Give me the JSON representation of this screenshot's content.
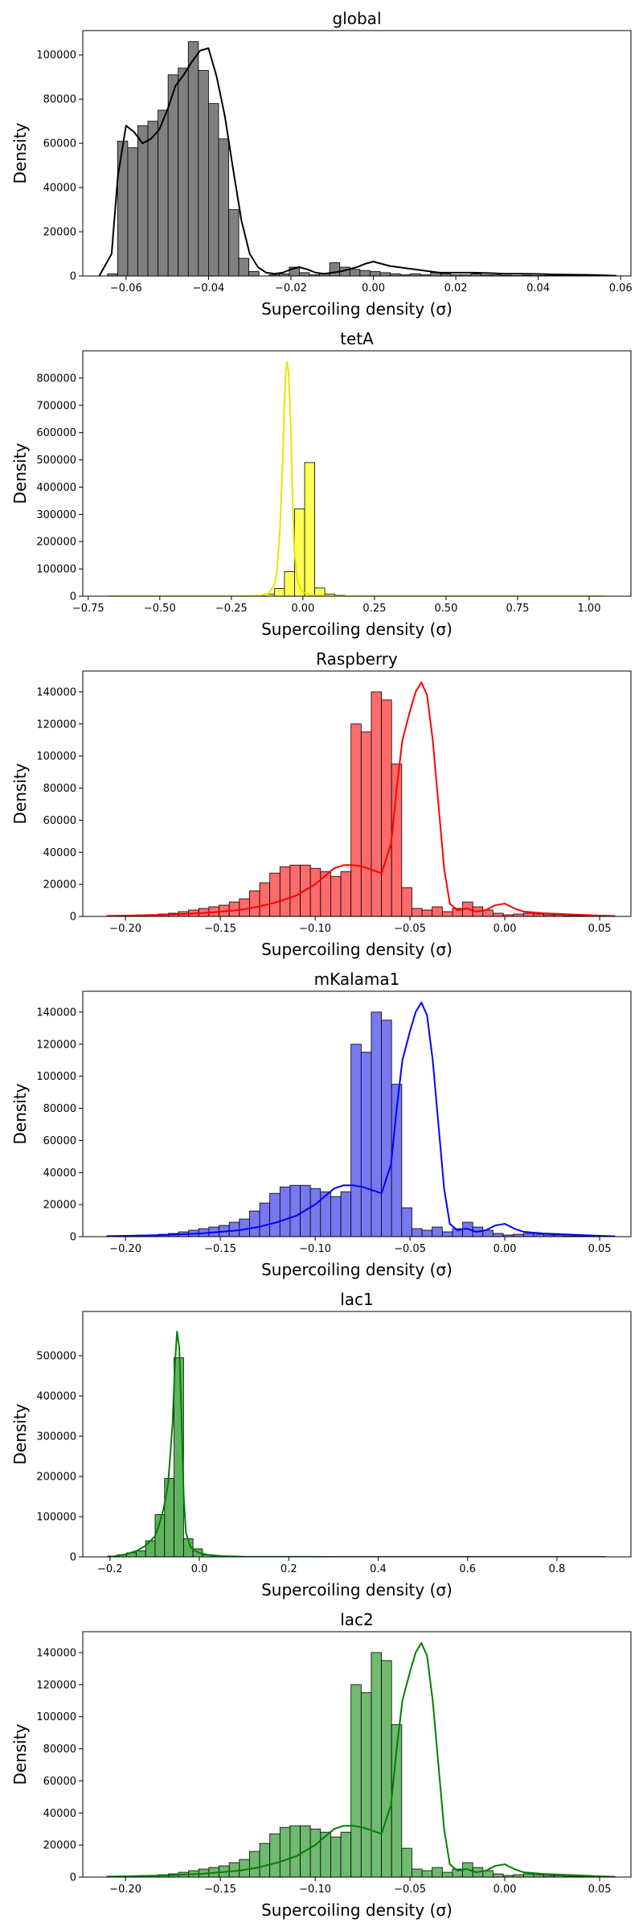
{
  "chart_data": [
    {
      "type": "histogram",
      "title": "global",
      "xlabel": "Supercoiling density (σ)",
      "ylabel": "Density",
      "color": "#808080",
      "line_color": "#000000",
      "xlim": [
        -0.0705,
        0.0625
      ],
      "ylim": [
        0,
        111000
      ],
      "xticks": [
        -0.06,
        -0.04,
        -0.02,
        0.0,
        0.02,
        0.04,
        0.06
      ],
      "xtick_labels": [
        "−0.06",
        "−0.04",
        "−0.02",
        "0.00",
        "0.02",
        "0.04",
        "0.06"
      ],
      "yticks": [
        0,
        20000,
        40000,
        60000,
        80000,
        100000
      ],
      "ytick_labels": [
        "0",
        "20000",
        "40000",
        "60000",
        "80000",
        "100000"
      ],
      "bins": {
        "x0": -0.0645,
        "width": 0.00245,
        "values": [
          1000,
          61000,
          58000,
          68000,
          70000,
          75000,
          91000,
          94000,
          106000,
          93000,
          78000,
          62000,
          30000,
          8000,
          2000,
          0,
          500,
          1000,
          4000,
          1500,
          500,
          1000,
          6000,
          4000,
          3000,
          2500,
          2000,
          1500,
          1000,
          500,
          1000,
          500,
          1500,
          1000,
          500,
          500,
          1000,
          500,
          500,
          300,
          200,
          300,
          200,
          200,
          300,
          200,
          100,
          100,
          100,
          50,
          50,
          50,
          50,
          50
        ]
      },
      "kde": {
        "x": [
          -0.0665,
          -0.0635,
          -0.062,
          -0.06,
          -0.058,
          -0.056,
          -0.054,
          -0.052,
          -0.05,
          -0.048,
          -0.046,
          -0.044,
          -0.042,
          -0.04,
          -0.038,
          -0.036,
          -0.034,
          -0.032,
          -0.03,
          -0.028,
          -0.026,
          -0.024,
          -0.022,
          -0.02,
          -0.018,
          -0.016,
          -0.014,
          -0.012,
          -0.01,
          -0.008,
          -0.006,
          -0.004,
          -0.002,
          0.0,
          0.002,
          0.004,
          0.006,
          0.008,
          0.01,
          0.012,
          0.014,
          0.016,
          0.018,
          0.02,
          0.024,
          0.028,
          0.032,
          0.036,
          0.04,
          0.044,
          0.048,
          0.052,
          0.056,
          0.059
        ],
        "y": [
          0,
          10000,
          45000,
          68000,
          65000,
          60000,
          62000,
          66000,
          75000,
          86000,
          91000,
          97000,
          102000,
          103000,
          90000,
          72000,
          48000,
          25000,
          10000,
          4000,
          1500,
          1000,
          1500,
          3000,
          4000,
          3000,
          1500,
          1000,
          1500,
          2000,
          3000,
          4000,
          5500,
          6500,
          5500,
          4500,
          4000,
          3500,
          3000,
          2500,
          2000,
          1500,
          1500,
          1500,
          1500,
          1300,
          1000,
          1000,
          900,
          700,
          600,
          500,
          300,
          100
        ]
      }
    },
    {
      "type": "histogram",
      "title": "tetA",
      "xlabel": "Supercoiling density (σ)",
      "ylabel": "Density",
      "color": "#ffff55",
      "line_color": "#e6e600",
      "xlim": [
        -0.769,
        1.146
      ],
      "ylim": [
        0,
        900000
      ],
      "xticks": [
        -0.75,
        -0.5,
        -0.25,
        0.0,
        0.25,
        0.5,
        0.75,
        1.0
      ],
      "xtick_labels": [
        "−0.75",
        "−0.50",
        "−0.25",
        "0.00",
        "0.25",
        "0.50",
        "0.75",
        "1.00"
      ],
      "yticks": [
        0,
        100000,
        200000,
        300000,
        400000,
        500000,
        600000,
        700000,
        800000
      ],
      "ytick_labels": [
        "0",
        "100000",
        "200000",
        "300000",
        "400000",
        "500000",
        "600000",
        "700000",
        "800000"
      ],
      "bins": {
        "x0": -0.17,
        "width": 0.0352,
        "values": [
          3000,
          8000,
          28000,
          90000,
          320000,
          490000,
          30000,
          8000,
          3000
        ]
      },
      "kde": {
        "x": [
          -0.68,
          -0.3,
          -0.2,
          -0.15,
          -0.12,
          -0.1,
          -0.09,
          -0.08,
          -0.07,
          -0.065,
          -0.06,
          -0.055,
          -0.05,
          -0.045,
          -0.04,
          -0.035,
          -0.03,
          -0.02,
          -0.01,
          0.0,
          0.03,
          0.1,
          0.5,
          1.06
        ],
        "y": [
          0,
          0,
          500,
          2000,
          10000,
          40000,
          100000,
          250000,
          520000,
          700000,
          820000,
          860000,
          820000,
          700000,
          520000,
          320000,
          170000,
          60000,
          30000,
          15000,
          3000,
          500,
          0,
          0
        ]
      }
    },
    {
      "type": "histogram",
      "title": "Raspberry",
      "xlabel": "Supercoiling density (σ)",
      "ylabel": "Density",
      "color": "#ff6b6b",
      "line_color": "#ff0000",
      "xlim": [
        -0.2225,
        0.0665
      ],
      "ylim": [
        0,
        153000
      ],
      "xticks": [
        -0.2,
        -0.15,
        -0.1,
        -0.05,
        0.0,
        0.05
      ],
      "xtick_labels": [
        "−0.20",
        "−0.15",
        "−0.10",
        "−0.05",
        "0.00",
        "0.05"
      ],
      "yticks": [
        0,
        20000,
        40000,
        60000,
        80000,
        100000,
        120000,
        140000
      ],
      "ytick_labels": [
        "0",
        "20000",
        "40000",
        "60000",
        "80000",
        "100000",
        "120000",
        "140000"
      ],
      "bins": {
        "x0": -0.2095,
        "width": 0.00535,
        "values": [
          0,
          0,
          500,
          1000,
          1000,
          1500,
          2000,
          3000,
          4000,
          5000,
          6000,
          7000,
          9000,
          11000,
          16000,
          21000,
          27000,
          31000,
          32000,
          32000,
          30000,
          28000,
          25000,
          28000,
          120000,
          115000,
          140000,
          135000,
          95000,
          18000,
          5000,
          4000,
          6000,
          3000,
          5000,
          9000,
          6000,
          4000,
          2000,
          1000,
          1500,
          2000,
          1500,
          1000,
          1000,
          500,
          500,
          500,
          500,
          500
        ]
      },
      "kde": {
        "x": [
          -0.21,
          -0.2,
          -0.18,
          -0.16,
          -0.14,
          -0.13,
          -0.12,
          -0.11,
          -0.1,
          -0.095,
          -0.09,
          -0.085,
          -0.08,
          -0.075,
          -0.07,
          -0.065,
          -0.06,
          -0.057,
          -0.054,
          -0.05,
          -0.047,
          -0.044,
          -0.041,
          -0.038,
          -0.035,
          -0.032,
          -0.029,
          -0.025,
          -0.02,
          -0.015,
          -0.01,
          -0.005,
          0.0,
          0.005,
          0.01,
          0.02,
          0.03,
          0.04,
          0.05,
          0.058
        ],
        "y": [
          300,
          500,
          1000,
          2000,
          4000,
          6000,
          9000,
          13000,
          20000,
          25000,
          30000,
          32000,
          32000,
          31000,
          29000,
          27000,
          45000,
          80000,
          110000,
          128000,
          140000,
          146000,
          138000,
          110000,
          70000,
          30000,
          8000,
          4000,
          5000,
          3000,
          4000,
          7000,
          8000,
          5000,
          3000,
          2000,
          1500,
          1000,
          500,
          200
        ]
      }
    },
    {
      "type": "histogram",
      "title": "mKalama1",
      "xlabel": "Supercoiling density (σ)",
      "ylabel": "Density",
      "color": "#7878f0",
      "line_color": "#0000ff",
      "xlim": [
        -0.2225,
        0.0665
      ],
      "ylim": [
        0,
        153000
      ],
      "xticks": [
        -0.2,
        -0.15,
        -0.1,
        -0.05,
        0.0,
        0.05
      ],
      "xtick_labels": [
        "−0.20",
        "−0.15",
        "−0.10",
        "−0.05",
        "0.00",
        "0.05"
      ],
      "yticks": [
        0,
        20000,
        40000,
        60000,
        80000,
        100000,
        120000,
        140000
      ],
      "ytick_labels": [
        "0",
        "20000",
        "40000",
        "60000",
        "80000",
        "100000",
        "120000",
        "140000"
      ],
      "bins": {
        "x0": -0.2095,
        "width": 0.00535,
        "values": [
          0,
          0,
          500,
          1000,
          1000,
          1500,
          2000,
          3000,
          4000,
          5000,
          6000,
          7000,
          9000,
          11000,
          16000,
          21000,
          27000,
          31000,
          32000,
          32000,
          30000,
          28000,
          25000,
          28000,
          120000,
          115000,
          140000,
          135000,
          95000,
          18000,
          5000,
          4000,
          6000,
          3000,
          5000,
          9000,
          6000,
          4000,
          2000,
          1000,
          1500,
          2000,
          1500,
          1000,
          1000,
          500,
          500,
          500,
          500,
          500
        ]
      },
      "kde": {
        "x": [
          -0.21,
          -0.2,
          -0.18,
          -0.16,
          -0.14,
          -0.13,
          -0.12,
          -0.11,
          -0.1,
          -0.095,
          -0.09,
          -0.085,
          -0.08,
          -0.075,
          -0.07,
          -0.065,
          -0.06,
          -0.057,
          -0.054,
          -0.05,
          -0.047,
          -0.044,
          -0.041,
          -0.038,
          -0.035,
          -0.032,
          -0.029,
          -0.025,
          -0.02,
          -0.015,
          -0.01,
          -0.005,
          0.0,
          0.005,
          0.01,
          0.02,
          0.03,
          0.04,
          0.05,
          0.058
        ],
        "y": [
          300,
          500,
          1000,
          2000,
          4000,
          6000,
          9000,
          13000,
          20000,
          25000,
          30000,
          32000,
          32000,
          31000,
          29000,
          27000,
          45000,
          80000,
          110000,
          128000,
          140000,
          146000,
          138000,
          110000,
          70000,
          30000,
          8000,
          4000,
          5000,
          3000,
          4000,
          7000,
          8000,
          5000,
          3000,
          2000,
          1500,
          1000,
          500,
          200
        ]
      }
    },
    {
      "type": "histogram",
      "title": "lac1",
      "xlabel": "Supercoiling density (σ)",
      "ylabel": "Density",
      "color": "#5fb35f",
      "line_color": "#008000",
      "xlim": [
        -0.2608,
        0.9655
      ],
      "ylim": [
        0,
        610000
      ],
      "xticks": [
        -0.2,
        0.0,
        0.2,
        0.4,
        0.6,
        0.8
      ],
      "xtick_labels": [
        "−0.2",
        "0.0",
        "0.2",
        "0.4",
        "0.6",
        "0.8"
      ],
      "yticks": [
        0,
        100000,
        200000,
        300000,
        400000,
        500000
      ],
      "ytick_labels": [
        "0",
        "100000",
        "200000",
        "300000",
        "400000",
        "500000"
      ],
      "bins": {
        "x0": -0.205,
        "width": 0.0212,
        "values": [
          2000,
          5000,
          10000,
          15000,
          40000,
          105000,
          195000,
          495000,
          45000,
          20000,
          5000,
          2000
        ]
      },
      "kde": {
        "x": [
          -0.2,
          -0.18,
          -0.16,
          -0.14,
          -0.12,
          -0.1,
          -0.09,
          -0.08,
          -0.07,
          -0.06,
          -0.055,
          -0.05,
          -0.045,
          -0.04,
          -0.035,
          -0.03,
          -0.02,
          -0.01,
          0.0,
          0.02,
          0.05,
          0.1,
          0.3,
          0.6,
          0.91
        ],
        "y": [
          0,
          3000,
          8000,
          15000,
          28000,
          50000,
          80000,
          120000,
          180000,
          330000,
          470000,
          560000,
          520000,
          350000,
          150000,
          60000,
          25000,
          15000,
          10000,
          5000,
          2000,
          500,
          0,
          0,
          0
        ]
      }
    },
    {
      "type": "histogram",
      "title": "lac2",
      "xlabel": "Supercoiling density (σ)",
      "ylabel": "Density",
      "color": "#70b970",
      "line_color": "#008000",
      "xlim": [
        -0.2225,
        0.0665
      ],
      "ylim": [
        0,
        153000
      ],
      "xticks": [
        -0.2,
        -0.15,
        -0.1,
        -0.05,
        0.0,
        0.05
      ],
      "xtick_labels": [
        "−0.20",
        "−0.15",
        "−0.10",
        "−0.05",
        "0.00",
        "0.05"
      ],
      "yticks": [
        0,
        20000,
        40000,
        60000,
        80000,
        100000,
        120000,
        140000
      ],
      "ytick_labels": [
        "0",
        "20000",
        "40000",
        "60000",
        "80000",
        "100000",
        "120000",
        "140000"
      ],
      "bins": {
        "x0": -0.2095,
        "width": 0.00535,
        "values": [
          0,
          0,
          500,
          1000,
          1000,
          1500,
          2000,
          3000,
          4000,
          5000,
          6000,
          7000,
          9000,
          11000,
          16000,
          21000,
          27000,
          31000,
          32000,
          32000,
          30000,
          28000,
          25000,
          28000,
          120000,
          115000,
          140000,
          135000,
          95000,
          18000,
          5000,
          4000,
          6000,
          3000,
          5000,
          9000,
          6000,
          4000,
          2000,
          1000,
          1500,
          2000,
          1500,
          1000,
          1000,
          500,
          500,
          500,
          500,
          500
        ]
      },
      "kde": {
        "x": [
          -0.21,
          -0.2,
          -0.18,
          -0.16,
          -0.14,
          -0.13,
          -0.12,
          -0.11,
          -0.1,
          -0.095,
          -0.09,
          -0.085,
          -0.08,
          -0.075,
          -0.07,
          -0.065,
          -0.06,
          -0.057,
          -0.054,
          -0.05,
          -0.047,
          -0.044,
          -0.041,
          -0.038,
          -0.035,
          -0.032,
          -0.029,
          -0.025,
          -0.02,
          -0.015,
          -0.01,
          -0.005,
          0.0,
          0.005,
          0.01,
          0.02,
          0.03,
          0.04,
          0.05,
          0.058
        ],
        "y": [
          300,
          500,
          1000,
          2000,
          4000,
          6000,
          9000,
          13000,
          20000,
          25000,
          30000,
          32000,
          32000,
          31000,
          29000,
          27000,
          45000,
          80000,
          110000,
          128000,
          140000,
          146000,
          138000,
          110000,
          70000,
          30000,
          8000,
          4000,
          5000,
          3000,
          4000,
          7000,
          8000,
          5000,
          3000,
          2000,
          1500,
          1000,
          500,
          200
        ]
      }
    }
  ]
}
